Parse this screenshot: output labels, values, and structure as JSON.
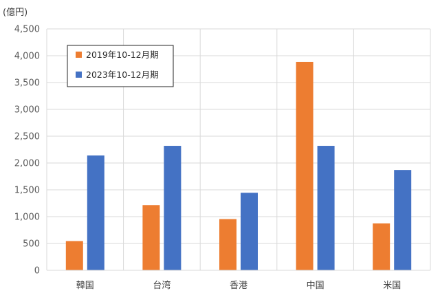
{
  "chart_data": {
    "type": "bar",
    "unit_label": "(億円)",
    "categories": [
      "韓国",
      "台湾",
      "香港",
      "中国",
      "米国"
    ],
    "series": [
      {
        "name": "2019年10-12月期",
        "color": "#ED7D31",
        "values": [
          545,
          1215,
          955,
          3885,
          875
        ]
      },
      {
        "name": "2023年10-12月期",
        "color": "#4472C4",
        "values": [
          2140,
          2320,
          1445,
          2320,
          1870
        ]
      }
    ],
    "ylim": [
      0,
      4500
    ],
    "yticks": [
      "0",
      "500",
      "1,000",
      "1,500",
      "2,000",
      "2,500",
      "3,000",
      "3,500",
      "4,000",
      "4,500"
    ],
    "grid": true,
    "legend_position": "top-left"
  }
}
